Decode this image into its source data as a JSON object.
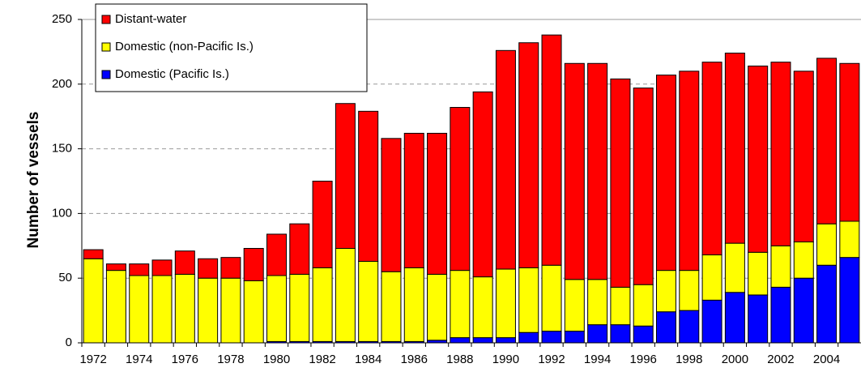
{
  "chart_data": {
    "type": "stacked-bar",
    "y_label": "Number of vessels",
    "categories": [
      "1972",
      null,
      "1974",
      null,
      "1976",
      null,
      "1978",
      null,
      "1980",
      null,
      "1982",
      null,
      "1984",
      null,
      "1986",
      null,
      "1988",
      null,
      "1990",
      null,
      "1992",
      null,
      "1994",
      null,
      "1996",
      null,
      "1998",
      null,
      "2000",
      null,
      "2002",
      null,
      "2004",
      null
    ],
    "series": [
      {
        "name": "Distant-water",
        "color": "#ff0000",
        "values": [
          7,
          5,
          9,
          12,
          18,
          15,
          16,
          25,
          32,
          39,
          67,
          112,
          116,
          103,
          104,
          109,
          126,
          143,
          169,
          174,
          178,
          167,
          167,
          161,
          152,
          151,
          154,
          149,
          147,
          144,
          142,
          132,
          128,
          122
        ]
      },
      {
        "name": "Domestic (non-Pacific Is.)",
        "color": "#ffff00",
        "values": [
          65,
          56,
          52,
          52,
          53,
          50,
          50,
          48,
          51,
          52,
          57,
          72,
          62,
          54,
          57,
          51,
          52,
          47,
          53,
          50,
          51,
          40,
          35,
          29,
          32,
          32,
          31,
          35,
          38,
          33,
          32,
          28,
          32,
          28
        ]
      },
      {
        "name": "Domestic (Pacific Is.)",
        "color": "#0000ff",
        "values": [
          0,
          0,
          0,
          0,
          0,
          0,
          0,
          0,
          1,
          1,
          1,
          1,
          1,
          1,
          1,
          2,
          4,
          4,
          4,
          8,
          9,
          9,
          14,
          14,
          13,
          24,
          25,
          33,
          39,
          37,
          43,
          50,
          60,
          66
        ]
      }
    ],
    "ylim": [
      0,
      250
    ],
    "yticks": [
      0,
      50,
      100,
      150,
      200,
      250
    ],
    "grid": true,
    "legend": "top-left"
  }
}
